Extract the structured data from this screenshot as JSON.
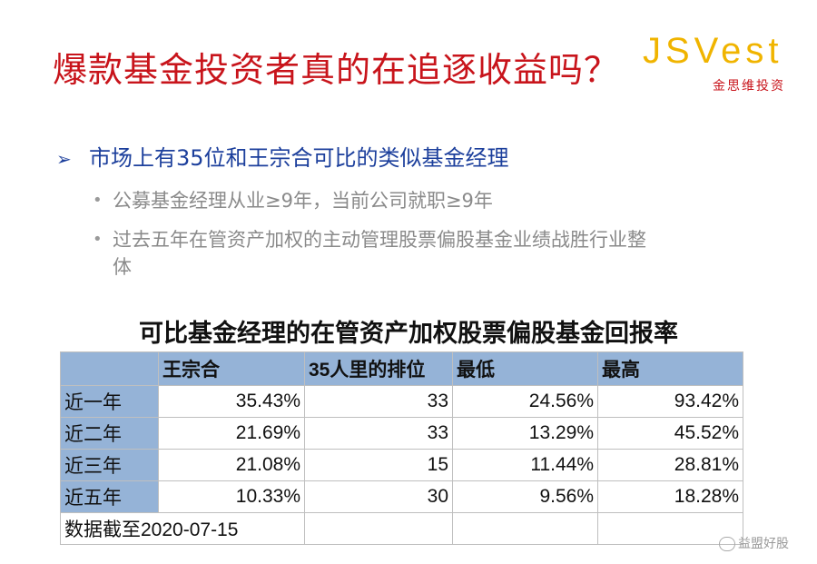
{
  "slide": {
    "title": "爆款基金投资者真的在追逐收益吗？",
    "logo": {
      "word": "JSVest",
      "subtitle": "金思维投资"
    },
    "bullet_main": "市场上有35位和王宗合可比的类似基金经理",
    "sub_bullets": [
      "公募基金经理从业≥9年，当前公司就职≥9年",
      "过去五年在管资产加权的主动管理股票偏股基金业绩战胜行业整体"
    ],
    "table_title": "可比基金经理的在管资产加权股票偏股基金回报率",
    "colors": {
      "title": "#c8141b",
      "bullet": "#1c3f9c",
      "header_bg": "#95b3d7",
      "logo": "#f0b400"
    },
    "watermark": "益盟好股"
  },
  "chart_data": {
    "type": "table",
    "title": "可比基金经理的在管资产加权股票偏股基金回报率",
    "columns": [
      "",
      "王宗合",
      "35人里的排位",
      "最低",
      "最高"
    ],
    "rows": [
      {
        "label": "近一年",
        "wzh": "35.43%",
        "rank": "33",
        "min": "24.56%",
        "max": "93.42%"
      },
      {
        "label": "近二年",
        "wzh": "21.69%",
        "rank": "33",
        "min": "13.29%",
        "max": "45.52%"
      },
      {
        "label": "近三年",
        "wzh": "21.08%",
        "rank": "15",
        "min": "11.44%",
        "max": "28.81%"
      },
      {
        "label": "近五年",
        "wzh": "10.33%",
        "rank": "30",
        "min": "9.56%",
        "max": "18.28%"
      }
    ],
    "note": "数据截至2020-07-15"
  }
}
